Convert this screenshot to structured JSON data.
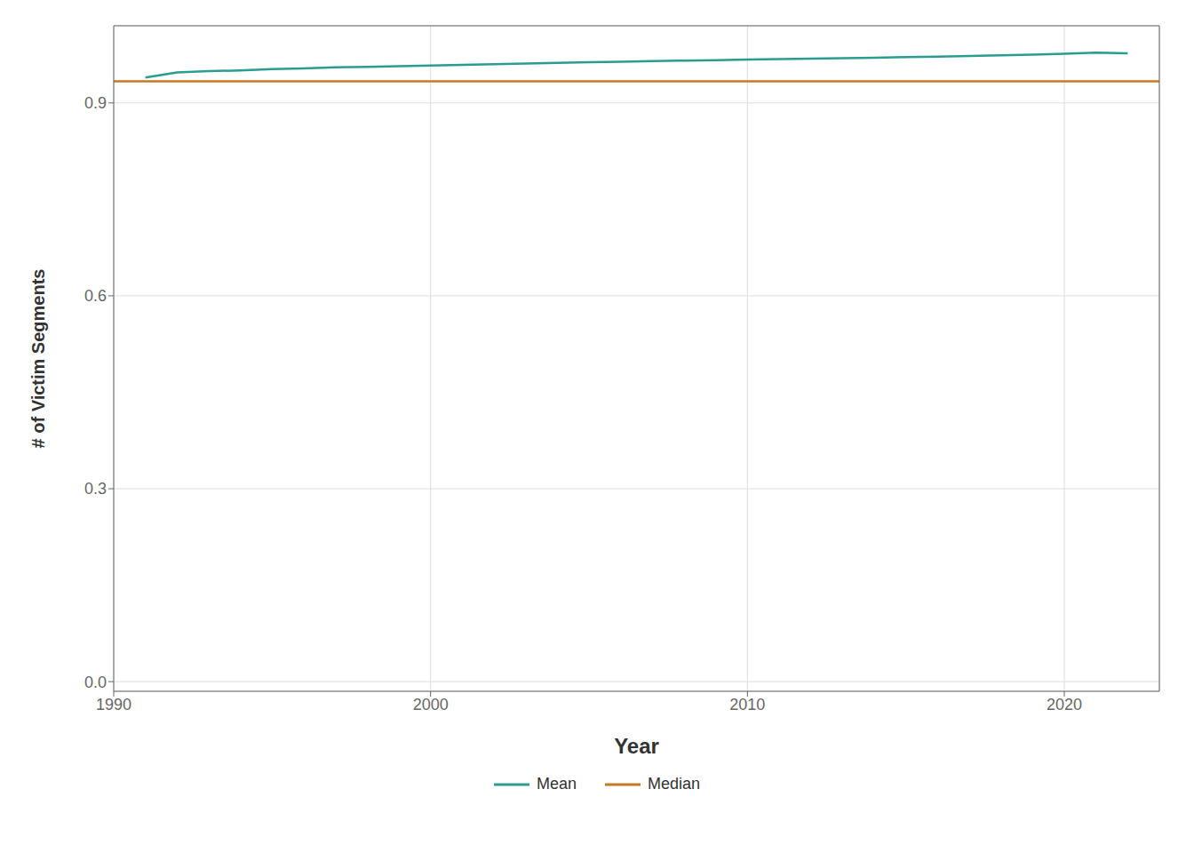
{
  "chart_data": {
    "type": "line",
    "x_label": "Year",
    "y_label": "# of Victim Segments",
    "x": [
      1991,
      1992,
      1993,
      1994,
      1995,
      1996,
      1997,
      1998,
      1999,
      2000,
      2001,
      2002,
      2003,
      2004,
      2005,
      2006,
      2007,
      2008,
      2009,
      2010,
      2011,
      2012,
      2013,
      2014,
      2015,
      2016,
      2017,
      2018,
      2019,
      2020,
      2021,
      2022
    ],
    "series": [
      {
        "name": "Mean",
        "type": "line",
        "color": "#2a9d8f",
        "values": [
          0.9395,
          0.9475,
          0.9495,
          0.9505,
          0.9525,
          0.9535,
          0.9553,
          0.9562,
          0.9572,
          0.9582,
          0.9592,
          0.9602,
          0.9612,
          0.9622,
          0.9632,
          0.9641,
          0.965,
          0.9658,
          0.9666,
          0.9674,
          0.9682,
          0.969,
          0.9695,
          0.9703,
          0.9712,
          0.972,
          0.973,
          0.974,
          0.975,
          0.9765,
          0.9782,
          0.977
        ]
      },
      {
        "name": "Median",
        "type": "hline",
        "color": "#c87722",
        "value": 0.9335
      }
    ],
    "xlim": [
      1990,
      2023
    ],
    "xticks": [
      1990,
      2000,
      2010,
      2020
    ],
    "ylim": [
      -0.015,
      1.02
    ],
    "yticks": [
      {
        "value": 0,
        "label": "0.0"
      },
      0.3,
      0.6,
      0.9
    ],
    "grid": true,
    "legend": "bottom"
  }
}
